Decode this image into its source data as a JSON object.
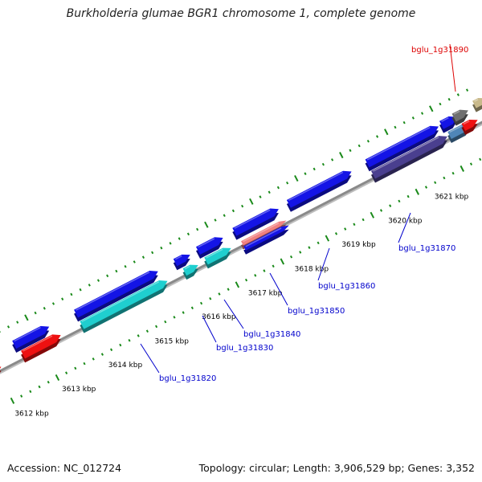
{
  "title": "Burkholderia glumae BGR1 chromosome 1, complete genome",
  "footer": {
    "accession": "Accession: NC_012724",
    "summary": "Topology: circular; Length: 3,906,529 bp; Genes: 3,352"
  },
  "colors": {
    "backbone": "#8a8a8a",
    "tick": "#1a8a1a",
    "label_default": "#0000cc",
    "label_highlight": "#dd0000",
    "forward_gene": "#1414e6",
    "cyan_gene": "#1fcfcf",
    "red_gene": "#ee1111",
    "olive_gene": "#6f8a22",
    "gray_gene": "#6f6f6f",
    "khaki_gene": "#c9b98a",
    "salmon_gene": "#f08080",
    "steel_gene": "#4f86b8",
    "purple_gene": "#4a3f8f"
  },
  "scale_labels": [
    {
      "position_kbp": 3612,
      "text": "3612 kbp"
    },
    {
      "position_kbp": 3613,
      "text": "3613 kbp"
    },
    {
      "position_kbp": 3614,
      "text": "3614 kbp"
    },
    {
      "position_kbp": 3615,
      "text": "3615 kbp"
    },
    {
      "position_kbp": 3616,
      "text": "3616 kbp"
    },
    {
      "position_kbp": 3617,
      "text": "3617 kbp"
    },
    {
      "position_kbp": 3618,
      "text": "3618 kbp"
    },
    {
      "position_kbp": 3619,
      "text": "3619 kbp"
    },
    {
      "position_kbp": 3620,
      "text": "3620 kbp"
    },
    {
      "position_kbp": 3621,
      "text": "3621 kbp"
    }
  ],
  "gene_labels": [
    {
      "text": "bglu_1g31820",
      "highlight": false
    },
    {
      "text": "bglu_1g31830",
      "highlight": false
    },
    {
      "text": "bglu_1g31840",
      "highlight": false
    },
    {
      "text": "bglu_1g31850",
      "highlight": false
    },
    {
      "text": "bglu_1g31860",
      "highlight": false
    },
    {
      "text": "bglu_1g31870",
      "highlight": false
    },
    {
      "text": "bglu_1g31890",
      "highlight": true
    }
  ]
}
